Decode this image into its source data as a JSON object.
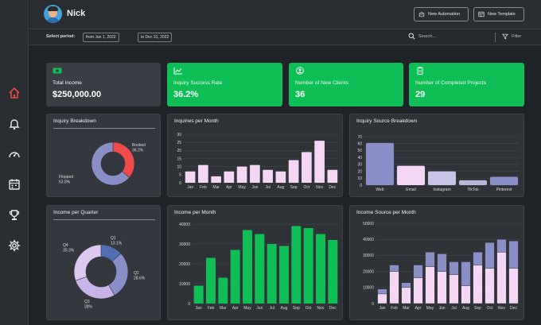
{
  "user": {
    "name": "Nick"
  },
  "header": {
    "new_automation": "New Automation",
    "new_template": "New Template"
  },
  "filter": {
    "label": "Select period:",
    "from": "from Jan 1, 2022",
    "to": "to Dec 31, 2022",
    "search_placeholder": "Search...",
    "filter_label": "Filter"
  },
  "kpis": {
    "total_income": {
      "label": "Total Income",
      "value": "$250,000.00"
    },
    "inquiry_success": {
      "label": "Inquiry Success Rate",
      "value": "36.2%"
    },
    "new_clients": {
      "label": "Number of New Clients",
      "value": "36"
    },
    "completed_projects": {
      "label": "Number of Completed Projects",
      "value": "29"
    }
  },
  "colors": {
    "green": "#0fbf55",
    "purple": "#8a8fc8",
    "red": "#f04a4a",
    "pink": "#f5d6f5",
    "blue": "#4f6fb0"
  },
  "panels": {
    "inquiry_breakdown": "Inquiry Breakdown",
    "inquiries_per_month": "Inquiries per Month",
    "inquiry_source": "Inquiry Source Breakdown",
    "income_per_quarter": "Income per Quarter",
    "income_per_month": "Income per Month",
    "income_source": "Income Source per Month"
  },
  "chart_data": [
    {
      "id": "inquiry_breakdown",
      "type": "pie",
      "title": "Inquiry Breakdown",
      "labels": [
        "Booked",
        "Flopped"
      ],
      "values": [
        36.2,
        63.8
      ],
      "value_labels": [
        "36.2%",
        "63.8%"
      ],
      "colors": [
        "#f04a4a",
        "#8a8fc8"
      ]
    },
    {
      "id": "inquiries_per_month",
      "type": "bar",
      "title": "Inquiries per Month",
      "categories": [
        "Jan",
        "Feb",
        "Mar",
        "Apr",
        "May",
        "Jun",
        "Jul",
        "Aug",
        "Sep",
        "Oct",
        "Nov",
        "Dec"
      ],
      "values": [
        7,
        11,
        4,
        7,
        10,
        11,
        8,
        7,
        14,
        19,
        26,
        8
      ],
      "ylim": [
        0,
        30
      ],
      "yticks": [
        0,
        5,
        10,
        15,
        20,
        25,
        30
      ],
      "color": "#f5d6f5"
    },
    {
      "id": "inquiry_source",
      "type": "bar",
      "title": "Inquiry Source Breakdown",
      "categories": [
        "Web",
        "Email",
        "Instagram",
        "TikTok",
        "Pinterest"
      ],
      "values": [
        61,
        28,
        20,
        7,
        12
      ],
      "ylim": [
        0,
        70
      ],
      "yticks": [
        0,
        10,
        20,
        30,
        40,
        50,
        60,
        70
      ],
      "colors": [
        "#8a8fc8",
        "#f5d6f5",
        "#c8c4e8",
        "#b8b8d8",
        "#8a8fc8"
      ]
    },
    {
      "id": "income_per_quarter",
      "type": "pie",
      "title": "Income per Quarter",
      "labels": [
        "Q1",
        "Q2",
        "Q3",
        "Q4"
      ],
      "values": [
        13.1,
        28.6,
        28,
        30.3
      ],
      "value_labels": [
        "13.1%",
        "28.6%",
        "28%",
        "30.3%"
      ],
      "colors": [
        "#4f6fb0",
        "#8a8fc8",
        "#c8b4e8",
        "#dcc8f0"
      ]
    },
    {
      "id": "income_per_month",
      "type": "bar",
      "title": "Income per Month",
      "categories": [
        "Jan",
        "Feb",
        "Mar",
        "Apr",
        "May",
        "Jun",
        "Jul",
        "Aug",
        "Sep",
        "Oct",
        "Nov",
        "Dec"
      ],
      "values": [
        9000,
        23000,
        13000,
        27000,
        37000,
        35000,
        30000,
        29000,
        39000,
        38000,
        35000,
        32000
      ],
      "ylim": [
        0,
        40000
      ],
      "yticks": [
        0,
        10000,
        20000,
        30000,
        40000
      ],
      "color": "#0fbf55"
    },
    {
      "id": "income_source",
      "type": "bar",
      "title": "Income Source per Month",
      "categories": [
        "Jan",
        "Feb",
        "Mar",
        "Apr",
        "May",
        "Jun",
        "Jul",
        "Aug",
        "Sep",
        "Oct",
        "Nov",
        "Dec"
      ],
      "ylim": [
        0,
        50000
      ],
      "yticks": [
        0,
        10000,
        20000,
        30000,
        40000,
        50000
      ],
      "stacked": true,
      "series": [
        {
          "values": [
            6000,
            20000,
            10000,
            16000,
            23000,
            20000,
            18000,
            11000,
            24000,
            22000,
            32000,
            22000
          ],
          "color": "#f5d6f5"
        },
        {
          "values": [
            3000,
            4000,
            3000,
            8000,
            9000,
            11000,
            8000,
            15000,
            8000,
            16000,
            8000,
            17000
          ],
          "color": "#8a8fc8"
        }
      ]
    }
  ]
}
